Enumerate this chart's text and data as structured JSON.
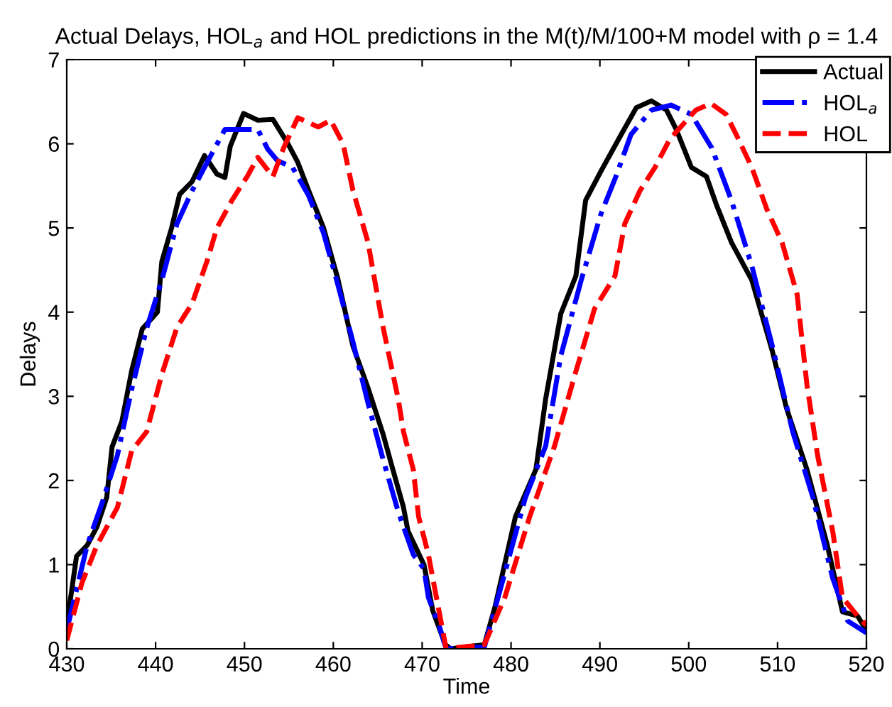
{
  "chart_data": {
    "type": "line",
    "title": "Actual Delays, HOL$_{a}$ and HOL predictions in the M(t)/M/100+M model with ρ = 1.4",
    "xlabel": "Time",
    "ylabel": "Delays",
    "xlim": [
      430,
      520
    ],
    "ylim": [
      0,
      7
    ],
    "xticks": [
      430,
      440,
      450,
      460,
      470,
      480,
      490,
      500,
      510,
      520
    ],
    "yticks": [
      0,
      1,
      2,
      3,
      4,
      5,
      6,
      7
    ],
    "grid": false,
    "legend": "top right",
    "series": [
      {
        "name": "Actual",
        "color": "#000000",
        "line_style": "solid",
        "x": [
          430,
          431.1,
          432.3,
          433.4,
          434.5,
          435.1,
          436.2,
          437.3,
          438.5,
          440.2,
          440.7,
          441.8,
          442.7,
          444.1,
          445.5,
          446.9,
          447.8,
          448.4,
          449.9,
          451.5,
          453.2,
          454.9,
          456.0,
          457.2,
          458.9,
          460.5,
          462.2,
          463.9,
          465.6,
          466.7,
          467.9,
          468.4,
          470.2,
          471.2,
          472.6,
          473.2,
          477.0,
          478.2,
          480.5,
          482.8,
          483.9,
          485.6,
          487.3,
          488.4,
          490.1,
          492.4,
          494.1,
          495.8,
          497.5,
          498.6,
          500.3,
          502.0,
          503.1,
          504.8,
          507.1,
          509.4,
          511.0,
          513.3,
          515.6,
          517.3,
          519.0,
          520
        ],
        "values": [
          0.28,
          1.1,
          1.23,
          1.45,
          1.8,
          2.4,
          2.7,
          3.3,
          3.8,
          4.0,
          4.6,
          5.0,
          5.4,
          5.55,
          5.86,
          5.64,
          5.6,
          5.97,
          6.36,
          6.28,
          6.29,
          6.0,
          5.78,
          5.45,
          5.0,
          4.4,
          3.6,
          3.1,
          2.55,
          2.13,
          1.68,
          1.4,
          1.0,
          0.45,
          0.05,
          0,
          0.05,
          0.5,
          1.57,
          2.13,
          2.97,
          3.98,
          4.43,
          5.33,
          5.67,
          6.11,
          6.43,
          6.51,
          6.4,
          6.17,
          5.72,
          5.61,
          5.28,
          4.83,
          4.38,
          3.54,
          2.86,
          2.13,
          1.23,
          0.44,
          0.39,
          0.22
        ]
      },
      {
        "name": "HOL$_{a}$",
        "color": "#0000ff",
        "line_style": "dashdot",
        "x": [
          430,
          432.3,
          434,
          435.7,
          437.3,
          439.0,
          440.7,
          442.4,
          444.1,
          445.8,
          447.8,
          449.8,
          451.5,
          452.6,
          453.7,
          455.4,
          457.2,
          458.9,
          460.5,
          462.2,
          463.9,
          465.6,
          467.3,
          469.0,
          470.2,
          470.7,
          471.9,
          472.7,
          477,
          479.3,
          481.6,
          483.9,
          485.6,
          487.9,
          490.1,
          491.8,
          493.5,
          495.8,
          498.0,
          500.3,
          502.6,
          504.8,
          507.1,
          509.4,
          511.7,
          514.0,
          516.2,
          517.9,
          520
        ],
        "values": [
          0.22,
          1.23,
          1.74,
          2.3,
          3.08,
          3.81,
          4.38,
          5.05,
          5.44,
          5.78,
          6.17,
          6.17,
          6.17,
          5.94,
          5.8,
          5.72,
          5.39,
          4.94,
          4.33,
          3.65,
          2.92,
          2.25,
          1.63,
          1.12,
          0.95,
          0.61,
          0.28,
          0,
          0.02,
          0.9,
          1.79,
          2.41,
          3.48,
          4.38,
          5.16,
          5.61,
          6.11,
          6.4,
          6.46,
          6.35,
          5.95,
          5.33,
          4.55,
          3.6,
          2.58,
          1.79,
          0.84,
          0.33,
          0.19
        ]
      },
      {
        "name": "HOL",
        "color": "#ff0000",
        "line_style": "dashed",
        "x": [
          430,
          431.7,
          433.4,
          435.7,
          437.3,
          439.0,
          440.7,
          442.4,
          444.1,
          445.8,
          446.9,
          448.6,
          450.3,
          451.5,
          453.2,
          454.4,
          456.0,
          458.3,
          459.7,
          461.1,
          462.2,
          463.9,
          465.6,
          467.3,
          467.9,
          469.0,
          469.6,
          470.7,
          471.3,
          472.7,
          477,
          479.3,
          482.1,
          484.9,
          487.2,
          489.4,
          491.7,
          492.8,
          494.5,
          496.2,
          497.9,
          500.8,
          502.5,
          504.2,
          505.3,
          507.1,
          508.8,
          510.5,
          512.2,
          513.3,
          514.5,
          516.2,
          517.3,
          519.0,
          520
        ],
        "values": [
          0.1,
          0.78,
          1.23,
          1.68,
          2.35,
          2.58,
          3.26,
          3.82,
          4.1,
          4.61,
          5.0,
          5.33,
          5.61,
          5.84,
          5.61,
          5.95,
          6.31,
          6.2,
          6.28,
          6.0,
          5.45,
          4.83,
          3.82,
          2.97,
          2.58,
          2.13,
          1.57,
          1.12,
          0.78,
          0,
          0.05,
          0.61,
          1.57,
          2.41,
          3.26,
          4.04,
          4.43,
          5.05,
          5.44,
          5.72,
          6.06,
          6.4,
          6.48,
          6.35,
          6.12,
          5.72,
          5.22,
          4.83,
          4.21,
          3.14,
          2.3,
          1.4,
          0.61,
          0.39,
          0.28
        ]
      }
    ]
  }
}
